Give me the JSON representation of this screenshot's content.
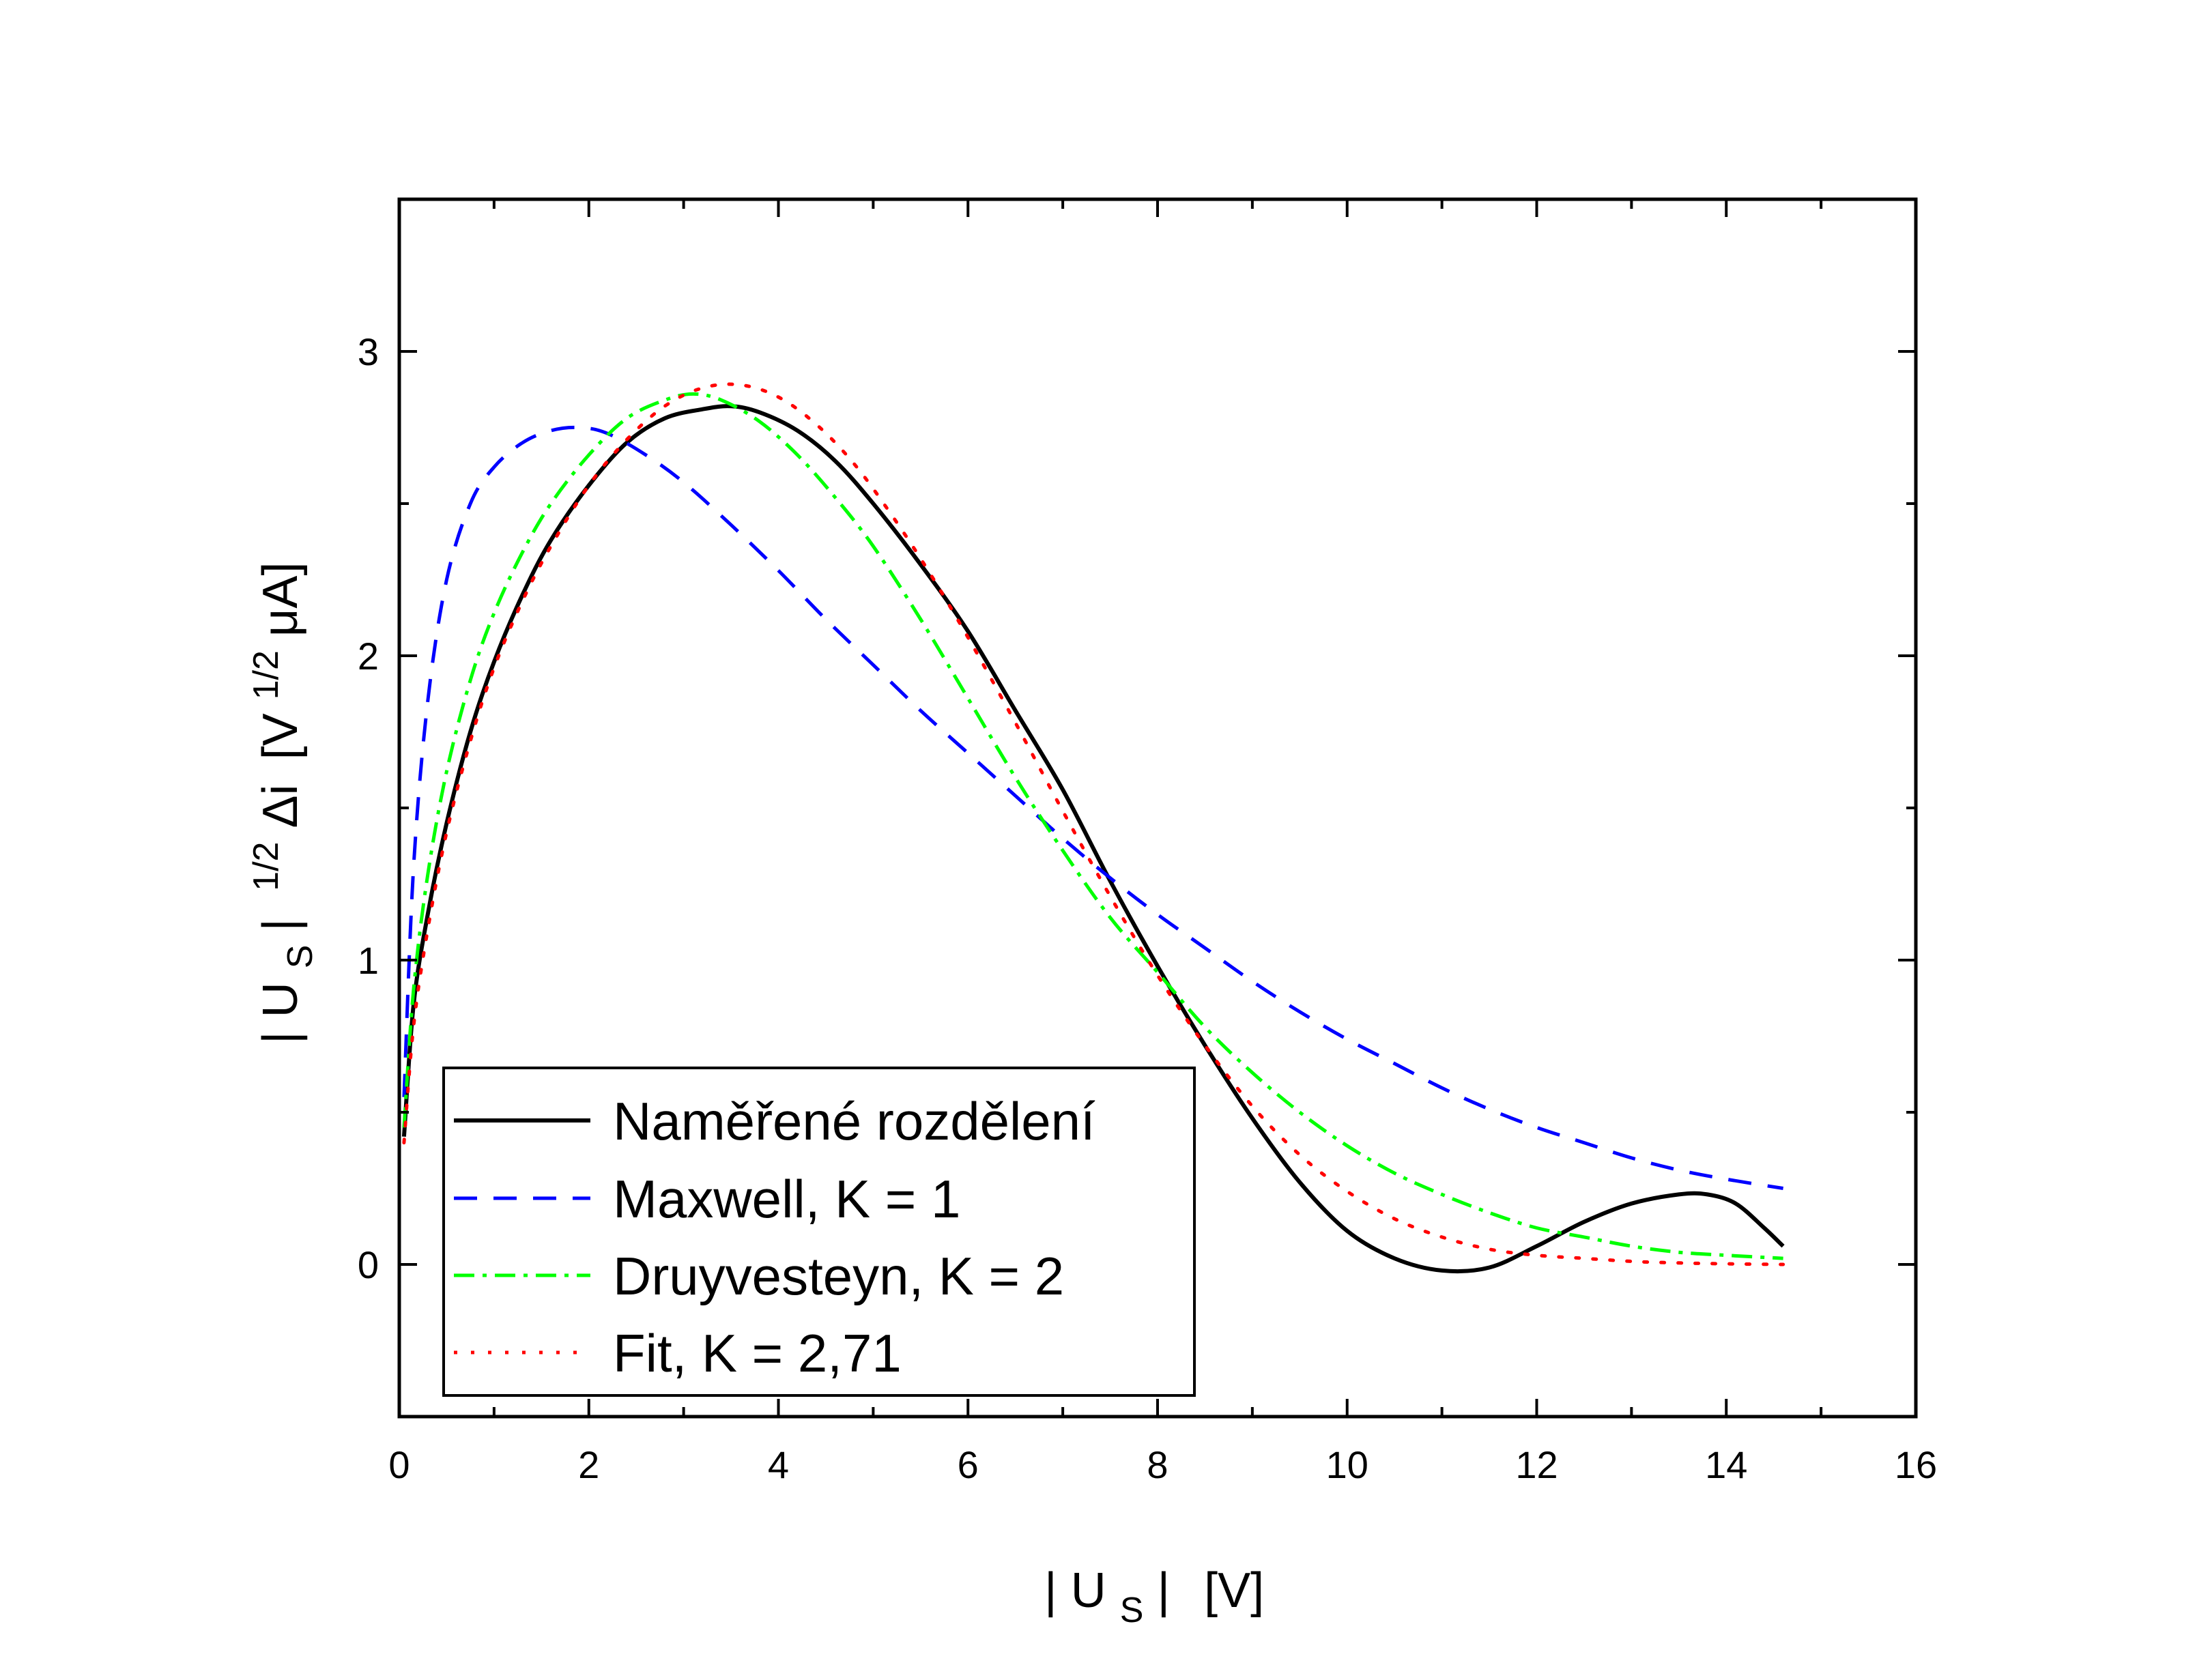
{
  "chart_data": {
    "type": "line",
    "xlabel": {
      "pipe_left": "|",
      "main": "U",
      "sub": "S",
      "pipe_right": "|",
      "unit": "[V]"
    },
    "ylabel": {
      "pipe_left": "|",
      "main": "U",
      "sub": "S",
      "pipe_right": "|",
      "sup1": "1/2",
      "delta": "Δi",
      "unit_open": "[V",
      "sup2": "1/2",
      "unit_close": "μA]"
    },
    "xlim": [
      0,
      16
    ],
    "ylim": [
      -0.5,
      3.5
    ],
    "xticks": [
      "0",
      "2",
      "4",
      "6",
      "8",
      "10",
      "12",
      "14",
      "16"
    ],
    "yticks": [
      "0",
      "1",
      "2",
      "3"
    ],
    "grid": false,
    "legend_position": "bottom-left",
    "series": [
      {
        "name": "Naměřené rozdělení",
        "color": "#000000",
        "style": "solid",
        "x": [
          0.05,
          0.15,
          0.3,
          0.5,
          0.75,
          1.0,
          1.3,
          1.6,
          2.0,
          2.4,
          2.8,
          3.2,
          3.5,
          3.8,
          4.2,
          4.6,
          5.0,
          5.5,
          6.0,
          6.5,
          7.0,
          7.5,
          8.0,
          8.5,
          9.0,
          9.5,
          10.0,
          10.5,
          11.0,
          11.5,
          12.0,
          12.5,
          13.0,
          13.5,
          13.8,
          14.1,
          14.4,
          14.6
        ],
        "y": [
          0.42,
          0.85,
          1.15,
          1.45,
          1.75,
          1.98,
          2.2,
          2.38,
          2.56,
          2.7,
          2.78,
          2.81,
          2.82,
          2.8,
          2.74,
          2.64,
          2.5,
          2.3,
          2.08,
          1.82,
          1.56,
          1.26,
          0.98,
          0.72,
          0.48,
          0.27,
          0.11,
          0.02,
          -0.02,
          -0.01,
          0.06,
          0.14,
          0.2,
          0.23,
          0.23,
          0.2,
          0.12,
          0.06
        ]
      },
      {
        "name": "Maxwell, K = 1",
        "color": "#0000ff",
        "style": "dashed",
        "x": [
          0.05,
          0.15,
          0.3,
          0.5,
          0.75,
          1.0,
          1.3,
          1.6,
          1.9,
          2.2,
          2.6,
          3.0,
          3.5,
          4.0,
          4.5,
          5.0,
          5.5,
          6.0,
          6.5,
          7.0,
          7.5,
          8.0,
          8.5,
          9.0,
          9.5,
          10.0,
          10.5,
          11.0,
          11.5,
          12.0,
          12.5,
          13.0,
          13.5,
          14.0,
          14.6
        ],
        "y": [
          0.55,
          1.3,
          1.85,
          2.25,
          2.5,
          2.62,
          2.7,
          2.74,
          2.75,
          2.73,
          2.66,
          2.57,
          2.43,
          2.28,
          2.12,
          1.97,
          1.82,
          1.68,
          1.54,
          1.4,
          1.27,
          1.15,
          1.04,
          0.93,
          0.83,
          0.74,
          0.66,
          0.58,
          0.51,
          0.45,
          0.4,
          0.35,
          0.31,
          0.28,
          0.25
        ]
      },
      {
        "name": "Druyvesteyn, K = 2",
        "color": "#00ff00",
        "style": "dashdot",
        "x": [
          0.05,
          0.15,
          0.3,
          0.5,
          0.75,
          1.0,
          1.3,
          1.6,
          2.0,
          2.4,
          2.8,
          3.1,
          3.4,
          3.8,
          4.2,
          4.6,
          5.0,
          5.5,
          6.0,
          6.5,
          7.0,
          7.5,
          8.0,
          8.5,
          9.0,
          9.5,
          10.0,
          10.5,
          11.0,
          11.5,
          12.0,
          12.5,
          13.0,
          13.5,
          14.0,
          14.6
        ],
        "y": [
          0.45,
          0.9,
          1.28,
          1.62,
          1.92,
          2.14,
          2.34,
          2.5,
          2.66,
          2.78,
          2.84,
          2.86,
          2.84,
          2.77,
          2.66,
          2.52,
          2.36,
          2.12,
          1.86,
          1.6,
          1.36,
          1.14,
          0.96,
          0.78,
          0.63,
          0.5,
          0.39,
          0.3,
          0.23,
          0.17,
          0.12,
          0.09,
          0.06,
          0.04,
          0.03,
          0.02
        ]
      },
      {
        "name": "Fit, K = 2,71",
        "color": "#ff0000",
        "style": "dotted",
        "x": [
          0.05,
          0.15,
          0.3,
          0.5,
          0.75,
          1.0,
          1.3,
          1.6,
          2.0,
          2.4,
          2.8,
          3.2,
          3.6,
          4.0,
          4.4,
          4.8,
          5.2,
          5.6,
          6.0,
          6.5,
          7.0,
          7.5,
          8.0,
          8.5,
          9.0,
          9.5,
          10.0,
          10.5,
          11.0,
          11.5,
          12.0,
          12.5,
          13.0,
          13.5,
          14.0,
          14.6
        ],
        "y": [
          0.4,
          0.78,
          1.1,
          1.42,
          1.72,
          1.96,
          2.18,
          2.36,
          2.56,
          2.71,
          2.82,
          2.88,
          2.89,
          2.85,
          2.76,
          2.63,
          2.46,
          2.27,
          2.06,
          1.78,
          1.49,
          1.21,
          0.95,
          0.72,
          0.52,
          0.36,
          0.24,
          0.15,
          0.09,
          0.05,
          0.03,
          0.02,
          0.01,
          0.005,
          0.002,
          0.0
        ]
      }
    ]
  }
}
